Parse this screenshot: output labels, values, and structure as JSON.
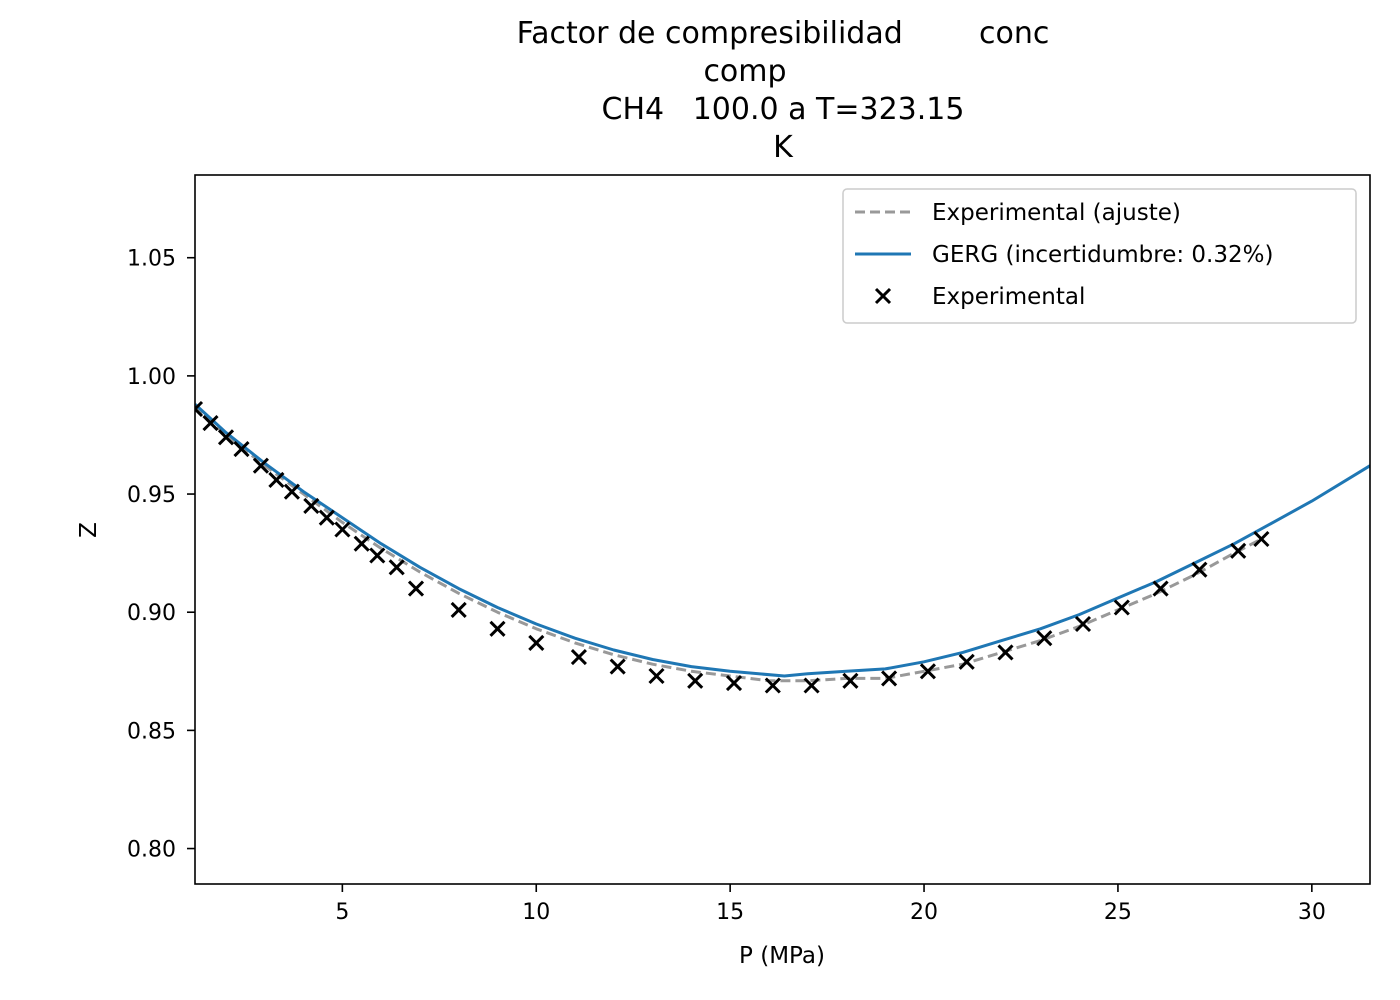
{
  "chart_data": {
    "type": "line",
    "title_lines": [
      "Factor de compresibilidad        conc",
      "comp",
      "CH4   100.0 a T=323.15",
      "K"
    ],
    "xlabel": "P (MPa)",
    "ylabel": "Z",
    "xlim": [
      1.2,
      31.5
    ],
    "ylim": [
      0.785,
      1.085
    ],
    "xticks": [
      5,
      10,
      15,
      20,
      25,
      30
    ],
    "yticks": [
      0.8,
      0.85,
      0.9,
      0.95,
      1.0,
      1.05
    ],
    "xtick_labels": [
      "5",
      "10",
      "15",
      "20",
      "25",
      "30"
    ],
    "ytick_labels": [
      "0.80",
      "0.85",
      "0.90",
      "0.95",
      "1.00",
      "1.05"
    ],
    "grid": false,
    "legend_position": "upper-right",
    "legend": [
      {
        "label": "Experimental (ajuste)",
        "style": "dashed",
        "color": "#999999"
      },
      {
        "label": "GERG (incertidumbre: 0.32%)",
        "style": "solid",
        "color": "#1f77b4"
      },
      {
        "label": "Experimental",
        "style": "marker-x",
        "color": "#000000"
      }
    ],
    "series": [
      {
        "name": "Experimental (ajuste)",
        "style": "dashed",
        "color": "#999999",
        "x": [
          1.2,
          2.0,
          3.0,
          4.0,
          5.0,
          6.0,
          7.0,
          8.0,
          9.0,
          10.0,
          11.0,
          12.0,
          13.0,
          14.0,
          15.0,
          16.0,
          17.0,
          18.0,
          19.0,
          20.0,
          21.0,
          22.0,
          23.0,
          24.0,
          25.0,
          26.0,
          27.0,
          28.0,
          28.7
        ],
        "y": [
          0.987,
          0.975,
          0.962,
          0.95,
          0.938,
          0.927,
          0.917,
          0.908,
          0.9,
          0.893,
          0.887,
          0.882,
          0.878,
          0.875,
          0.873,
          0.871,
          0.871,
          0.872,
          0.872,
          0.875,
          0.878,
          0.883,
          0.888,
          0.894,
          0.901,
          0.908,
          0.916,
          0.925,
          0.931
        ]
      },
      {
        "name": "GERG (incertidumbre: 0.32%)",
        "style": "solid",
        "color": "#1f77b4",
        "x": [
          1.2,
          2.0,
          3.0,
          4.0,
          5.0,
          6.0,
          7.0,
          8.0,
          9.0,
          10.0,
          11.0,
          12.0,
          13.0,
          14.0,
          15.0,
          16.4,
          17.0,
          18.0,
          19.0,
          20.0,
          21.0,
          22.0,
          23.0,
          24.0,
          25.0,
          26.0,
          27.0,
          28.0,
          29.0,
          30.0,
          31.5
        ],
        "y": [
          0.988,
          0.976,
          0.963,
          0.951,
          0.94,
          0.929,
          0.919,
          0.91,
          0.902,
          0.895,
          0.889,
          0.884,
          0.88,
          0.877,
          0.875,
          0.873,
          0.874,
          0.875,
          0.876,
          0.879,
          0.883,
          0.888,
          0.893,
          0.899,
          0.906,
          0.913,
          0.921,
          0.929,
          0.938,
          0.947,
          0.962
        ]
      },
      {
        "name": "Experimental",
        "style": "marker-x",
        "color": "#000000",
        "x": [
          1.2,
          1.6,
          2.0,
          2.4,
          2.9,
          3.3,
          3.7,
          4.2,
          4.6,
          5.0,
          5.5,
          5.9,
          6.4,
          6.9,
          8.0,
          9.0,
          10.0,
          11.1,
          12.1,
          13.1,
          14.1,
          15.1,
          16.1,
          17.1,
          18.1,
          19.1,
          20.1,
          21.1,
          22.1,
          23.1,
          24.1,
          25.1,
          26.1,
          27.1,
          28.1,
          28.7
        ],
        "y": [
          0.986,
          0.98,
          0.974,
          0.969,
          0.962,
          0.956,
          0.951,
          0.945,
          0.94,
          0.935,
          0.929,
          0.924,
          0.919,
          0.91,
          0.901,
          0.893,
          0.887,
          0.881,
          0.877,
          0.873,
          0.871,
          0.87,
          0.869,
          0.869,
          0.871,
          0.872,
          0.875,
          0.879,
          0.883,
          0.889,
          0.895,
          0.902,
          0.91,
          0.918,
          0.926,
          0.931
        ]
      }
    ]
  }
}
